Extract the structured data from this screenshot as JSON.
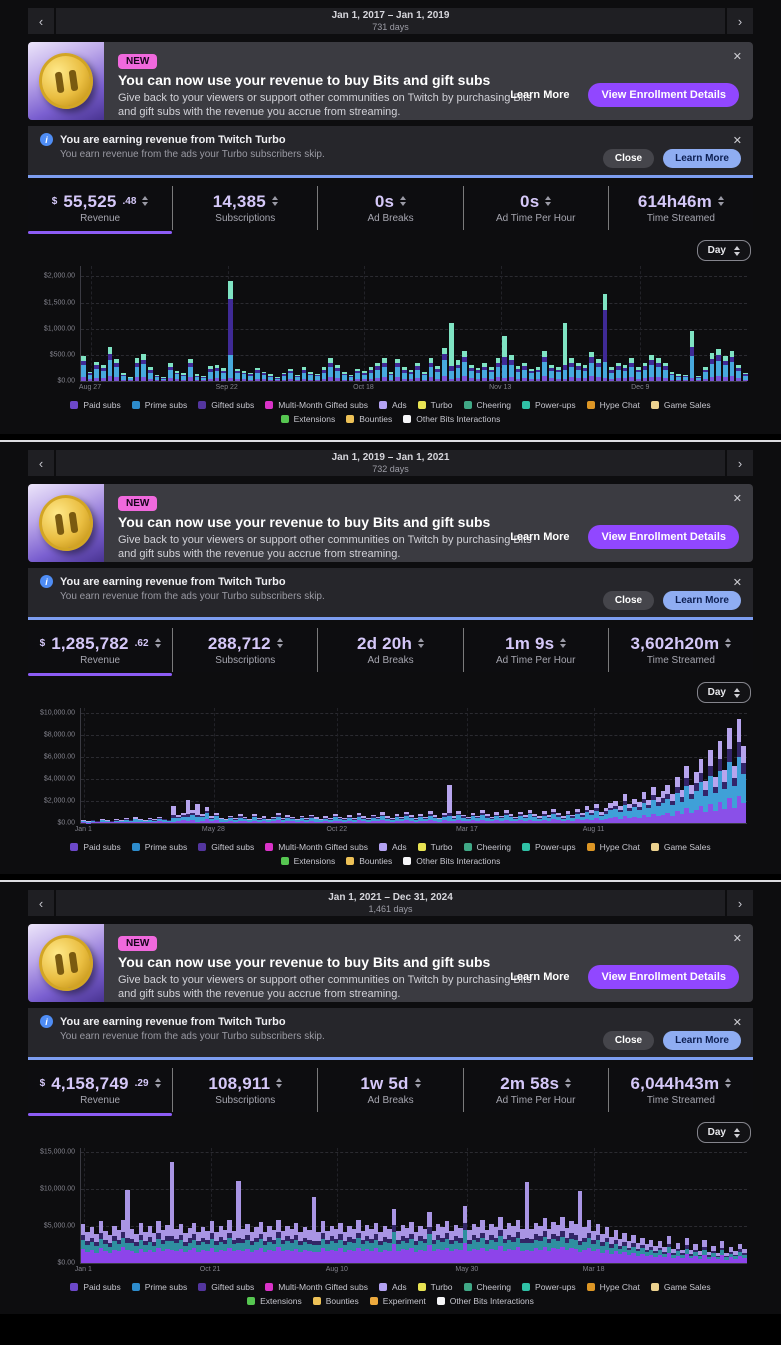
{
  "shared": {
    "nav": {
      "prev": "‹",
      "next": "›"
    },
    "banner": {
      "badge": "NEW",
      "title": "You can now use your revenue to buy Bits and gift subs",
      "body_line1": "Give back to your viewers or support other communities on Twitch by purchasing Bits",
      "body_line2": "and gift subs with the revenue you accrue from streaming.",
      "learn_more": "Learn More",
      "enroll": "View Enrollment Details",
      "close_icon": "✕"
    },
    "turbo": {
      "title": "You are earning revenue from Twitch Turbo",
      "subtitle": "You earn revenue from the ads your Turbo subscribers skip.",
      "close": "Close",
      "learn_more": "Learn More",
      "close_icon": "✕",
      "info_icon": "i"
    },
    "day_selector": "Day",
    "colors": {
      "accent": "#9147ff",
      "badge_pink": "#f069dd",
      "notice_blue": "#8fadf2",
      "underline_purple": "#8c5cf5"
    },
    "legend_row1": [
      {
        "name": "Paid subs",
        "color": "#6c48c9"
      },
      {
        "name": "Prime subs",
        "color": "#2d8ccc"
      },
      {
        "name": "Gifted subs",
        "color": "#53359e"
      },
      {
        "name": "Multi-Month Gifted subs",
        "color": "#d932c8"
      },
      {
        "name": "Ads",
        "color": "#b3a2f2"
      },
      {
        "name": "Turbo",
        "color": "#e8e353"
      },
      {
        "name": "Cheering",
        "color": "#40a886"
      },
      {
        "name": "Power-ups",
        "color": "#2fc1a6"
      },
      {
        "name": "Hype Chat",
        "color": "#dd9625"
      },
      {
        "name": "Game Sales",
        "color": "#ecd28f"
      }
    ],
    "legend_row2": [
      {
        "name": "Extensions",
        "color": "#56c651"
      },
      {
        "name": "Bounties",
        "color": "#edc157"
      },
      {
        "name": "Other Bits Interactions",
        "color": "#f5f5f7"
      }
    ]
  },
  "panels": [
    {
      "header": {
        "range": "Jan 1, 2017 – Jan 1, 2019",
        "days": "731 days"
      },
      "stats": [
        {
          "currency": "$",
          "main": "55,525",
          "cents": ".48",
          "label": "Revenue",
          "active": true
        },
        {
          "main": "14,385",
          "label": "Subscriptions"
        },
        {
          "main": "0s",
          "label": "Ad Breaks"
        },
        {
          "main": "0s",
          "label": "Ad Time Per Hour"
        },
        {
          "main": "614h46m",
          "label": "Time Streamed"
        }
      ]
    },
    {
      "header": {
        "range": "Jan 1, 2019 – Jan 1, 2021",
        "days": "732 days"
      },
      "stats": [
        {
          "currency": "$",
          "main": "1,285,782",
          "cents": ".62",
          "label": "Revenue",
          "active": true
        },
        {
          "main": "288,712",
          "label": "Subscriptions"
        },
        {
          "main": "2d 20h",
          "label": "Ad Breaks"
        },
        {
          "main": "1m 9s",
          "label": "Ad Time Per Hour"
        },
        {
          "main": "3,602h20m",
          "label": "Time Streamed"
        }
      ]
    },
    {
      "header": {
        "range": "Jan 1, 2021 – Dec 31, 2024",
        "days": "1,461 days"
      },
      "stats": [
        {
          "currency": "$",
          "main": "4,158,749",
          "cents": ".29",
          "label": "Revenue",
          "active": true
        },
        {
          "main": "108,911",
          "label": "Subscriptions"
        },
        {
          "main": "1w 5d",
          "label": "Ad Breaks"
        },
        {
          "main": "2m 58s",
          "label": "Ad Time Per Hour"
        },
        {
          "main": "6,044h43m",
          "label": "Time Streamed"
        }
      ],
      "legend_row2": [
        {
          "name": "Extensions",
          "color": "#56c651"
        },
        {
          "name": "Bounties",
          "color": "#edc157"
        },
        {
          "name": "Experiment",
          "color": "#eca93d"
        },
        {
          "name": "Other Bits Interactions",
          "color": "#f5f5f7"
        }
      ]
    }
  ],
  "chart_data": [
    {
      "type": "bar",
      "stacked": true,
      "note": "Daily revenue breakdown, values in USD, sampled approximation of dense daily bars",
      "ymax": 2200,
      "gap": 2,
      "yticks": [
        {
          "label": "$2,000.00",
          "value": 2000
        },
        {
          "label": "$1,500.00",
          "value": 1500
        },
        {
          "label": "$1,000.00",
          "value": 1000
        },
        {
          "label": "$500.00",
          "value": 500
        },
        {
          "label": "$0.00",
          "value": 0
        }
      ],
      "xticks": [
        {
          "label": "Aug 27",
          "pos": 1.5
        },
        {
          "label": "Sep 22",
          "pos": 22
        },
        {
          "label": "Oct 18",
          "pos": 42.5
        },
        {
          "label": "Nov 13",
          "pos": 63
        },
        {
          "label": "Dec 9",
          "pos": 84
        }
      ],
      "series_names": [
        "Paid subs",
        "Prime subs",
        "Gifted subs",
        "Cheering"
      ],
      "series_colors": [
        "#7a55d8",
        "#47a9de",
        "#3f2a96",
        "#7fe3c3"
      ],
      "fractions": [
        0.16,
        0.46,
        0.18,
        0.2
      ],
      "totals": [
        480,
        180,
        370,
        300,
        640,
        420,
        150,
        80,
        430,
        510,
        260,
        120,
        70,
        340,
        200,
        150,
        420,
        130,
        90,
        280,
        310,
        240,
        1900,
        230,
        200,
        160,
        250,
        180,
        130,
        70,
        160,
        230,
        110,
        260,
        170,
        140,
        260,
        430,
        310,
        170,
        120,
        230,
        190,
        260,
        350,
        430,
        170,
        420,
        260,
        210,
        350,
        170,
        430,
        290,
        630,
        1100,
        390,
        570,
        310,
        250,
        340,
        270,
        430,
        850,
        490,
        290,
        350,
        230,
        270,
        570,
        310,
        270,
        1100,
        430,
        350,
        310,
        560,
        420,
        1650,
        260,
        350,
        310,
        430,
        270,
        350,
        490,
        430,
        350,
        170,
        130,
        110,
        950,
        90,
        270,
        530,
        610,
        480,
        570,
        310,
        160
      ],
      "spikes": {
        "22": [
          60,
          440,
          1060,
          340
        ],
        "55": [
          40,
          150,
          90,
          820
        ],
        "63": [
          50,
          250,
          150,
          400
        ],
        "72": [
          40,
          160,
          100,
          800
        ],
        "78": [
          50,
          310,
          990,
          300
        ],
        "91": [
          60,
          420,
          170,
          300
        ]
      }
    },
    {
      "type": "bar",
      "stacked": true,
      "note": "Daily revenue breakdown, values in USD, sampled approximation of dense daily bars",
      "ymax": 10500,
      "gap": 0,
      "yticks": [
        {
          "label": "$10,000.00",
          "value": 10000
        },
        {
          "label": "$8,000.00",
          "value": 8000
        },
        {
          "label": "$6,000.00",
          "value": 6000
        },
        {
          "label": "$4,000.00",
          "value": 4000
        },
        {
          "label": "$2,000.00",
          "value": 2000
        },
        {
          "label": "$0.00",
          "value": 0
        }
      ],
      "xticks": [
        {
          "label": "Jan 1",
          "pos": 0.5
        },
        {
          "label": "May 28",
          "pos": 20
        },
        {
          "label": "Oct 22",
          "pos": 38.5
        },
        {
          "label": "Mar 17",
          "pos": 58
        },
        {
          "label": "Aug 11",
          "pos": 77
        }
      ],
      "series_names": [
        "Paid subs",
        "Prime subs",
        "Gifted subs",
        "Ads / other"
      ],
      "series_colors": [
        "#8a50e8",
        "#3fa0d8",
        "#332569",
        "#b7a5ee"
      ],
      "fractions": [
        0.26,
        0.38,
        0.14,
        0.22
      ],
      "totals": [
        240,
        170,
        320,
        210,
        400,
        280,
        190,
        340,
        260,
        420,
        300,
        510,
        370,
        250,
        430,
        330,
        550,
        410,
        300,
        1550,
        700,
        900,
        2100,
        1200,
        1700,
        800,
        1450,
        600,
        950,
        500,
        380,
        650,
        420,
        780,
        540,
        360,
        820,
        460,
        640,
        380,
        560,
        900,
        480,
        720,
        540,
        380,
        660,
        440,
        760,
        520,
        380,
        640,
        460,
        840,
        560,
        420,
        700,
        480,
        900,
        620,
        440,
        760,
        540,
        980,
        640,
        460,
        820,
        560,
        1020,
        700,
        480,
        860,
        580,
        1060,
        720,
        500,
        900,
        3400,
        620,
        1100,
        760,
        540,
        940,
        660,
        1140,
        780,
        560,
        980,
        680,
        1180,
        800,
        580,
        1020,
        700,
        1220,
        840,
        600,
        1060,
        720,
        1260,
        880,
        620,
        1100,
        760,
        1300,
        920,
        1500,
        1140,
        1700,
        960,
        1340,
        1800,
        2000,
        1500,
        2600,
        1700,
        2200,
        1900,
        2800,
        2100,
        3300,
        2400,
        2900,
        3400,
        2600,
        4200,
        3000,
        5200,
        3400,
        4600,
        5800,
        3800,
        6600,
        4200,
        7400,
        4800,
        8600,
        5200,
        9400,
        7000
      ],
      "spikes": {
        "19": [
          120,
          350,
          230,
          850
        ],
        "22": [
          150,
          420,
          260,
          1270
        ],
        "24": [
          130,
          380,
          240,
          950
        ],
        "77": [
          220,
          420,
          310,
          2450
        ]
      }
    },
    {
      "type": "bar",
      "stacked": true,
      "note": "Daily revenue breakdown, values in USD, sampled approximation of dense daily bars",
      "ymax": 15500,
      "gap": 0,
      "yticks": [
        {
          "label": "$15,000.00",
          "value": 15000
        },
        {
          "label": "$10,000.00",
          "value": 10000
        },
        {
          "label": "$5,000.00",
          "value": 5000
        },
        {
          "label": "$0.00",
          "value": 0
        }
      ],
      "xticks": [
        {
          "label": "Jan 1",
          "pos": 0.5
        },
        {
          "label": "Oct 21",
          "pos": 19.5
        },
        {
          "label": "Aug 10",
          "pos": 38.5
        },
        {
          "label": "May 30",
          "pos": 58
        },
        {
          "label": "Mar 18",
          "pos": 77
        }
      ],
      "series_names": [
        "Paid subs",
        "Prime subs",
        "Gifted subs",
        "Ads / other"
      ],
      "series_colors": [
        "#8d44ea",
        "#2f8fa0",
        "#322566",
        "#a995e4"
      ],
      "fractions": [
        0.36,
        0.22,
        0.13,
        0.29
      ],
      "totals": [
        5200,
        4100,
        4800,
        3900,
        5600,
        4300,
        3700,
        5000,
        4400,
        5800,
        9800,
        4600,
        3900,
        5300,
        4200,
        4900,
        4000,
        5600,
        4400,
        5100,
        13500,
        4500,
        5200,
        4000,
        4700,
        5400,
        4100,
        4800,
        4300,
        5600,
        4200,
        4900,
        4400,
        5700,
        4300,
        11000,
        4600,
        5200,
        4100,
        4800,
        5500,
        4200,
        4900,
        4400,
        5800,
        4300,
        5000,
        4500,
        5300,
        4100,
        4800,
        4400,
        8800,
        4200,
        5600,
        4300,
        5000,
        4600,
        5400,
        4200,
        4900,
        4500,
        5700,
        4300,
        5100,
        4600,
        5400,
        4200,
        4900,
        4500,
        7200,
        4300,
        5100,
        4700,
        5500,
        4200,
        5000,
        4600,
        6800,
        4300,
        5200,
        4800,
        5600,
        4300,
        5100,
        4700,
        7600,
        4400,
        5200,
        4800,
        5700,
        4400,
        5200,
        4800,
        6200,
        4500,
        5300,
        4900,
        5800,
        4500,
        10800,
        4600,
        5400,
        5000,
        6000,
        4600,
        5500,
        5100,
        6100,
        4700,
        5600,
        5200,
        9600,
        4800,
        5700,
        4300,
        5200,
        3900,
        4800,
        3500,
        4400,
        3200,
        4000,
        2900,
        3700,
        2700,
        3400,
        2500,
        3100,
        2300,
        2900,
        2100,
        3600,
        1900,
        2700,
        1800,
        3300,
        1700,
        2500,
        1600,
        3100,
        1500,
        2300,
        1400,
        2900,
        1300,
        2100,
        1600,
        2600,
        1900
      ],
      "spikes": {
        "10": [
          1700,
          1000,
          600,
          6500
        ],
        "20": [
          1800,
          1100,
          700,
          9900
        ],
        "35": [
          1700,
          1000,
          700,
          7600
        ],
        "52": [
          1500,
          900,
          600,
          5800
        ],
        "100": [
          1700,
          1000,
          700,
          7400
        ],
        "112": [
          1500,
          900,
          600,
          6600
        ]
      }
    }
  ]
}
